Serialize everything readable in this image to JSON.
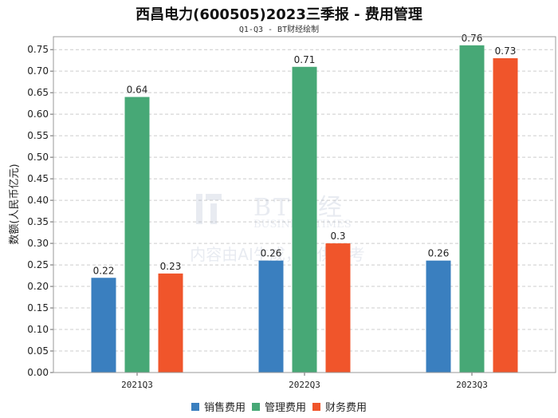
{
  "chart_data": {
    "type": "bar",
    "title": "西昌电力(600505)2023三季报 - 费用管理",
    "subtitle": "Q1-Q3 - BT财经绘制",
    "ylabel": "数额(人民币亿元)",
    "xlabel": "",
    "categories": [
      "2021Q3",
      "2022Q3",
      "2023Q3"
    ],
    "series": [
      {
        "name": "销售费用",
        "color": "#3a7fbf",
        "values": [
          0.22,
          0.26,
          0.26
        ],
        "labels": [
          "0.22",
          "0.26",
          "0.26"
        ]
      },
      {
        "name": "管理费用",
        "color": "#47a876",
        "values": [
          0.64,
          0.71,
          0.76
        ],
        "labels": [
          "0.64",
          "0.71",
          "0.76"
        ]
      },
      {
        "name": "财务费用",
        "color": "#f0552b",
        "values": [
          0.23,
          0.3,
          0.73
        ],
        "labels": [
          "0.23",
          "0.3",
          "0.73"
        ]
      }
    ],
    "ylim": [
      0,
      0.78
    ],
    "yticks": [
      "0.00",
      "0.05",
      "0.10",
      "0.15",
      "0.20",
      "0.25",
      "0.30",
      "0.35",
      "0.40",
      "0.45",
      "0.50",
      "0.55",
      "0.60",
      "0.65",
      "0.70",
      "0.75"
    ],
    "grid": true,
    "legend_position": "bottom"
  },
  "watermark": {
    "brand_cn": "BT财经",
    "brand_en": "BUSINESS TIMES",
    "notice": "内容由AI生成，仅供参考"
  }
}
